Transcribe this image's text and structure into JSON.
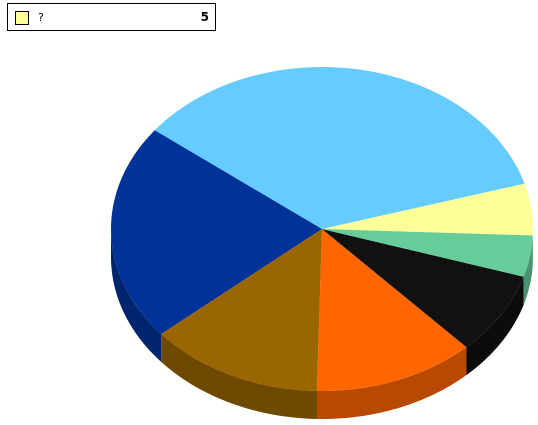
{
  "chart_data": {
    "type": "pie",
    "style": "3d",
    "slices": [
      {
        "label": "?",
        "value": 5,
        "color": "#ffff99"
      },
      {
        "label": "",
        "value": 34,
        "color": "#66ccff"
      },
      {
        "label": "",
        "value": 21,
        "color": "#003399"
      },
      {
        "label": "",
        "value": 13,
        "color": "#996600"
      },
      {
        "label": "",
        "value": 12,
        "color": "#ff6600"
      },
      {
        "label": "",
        "value": 8,
        "color": "#111111"
      },
      {
        "label": "",
        "value": 4,
        "color": "#66cc99"
      }
    ]
  },
  "tooltip": {
    "label": "?",
    "value": "5",
    "swatch_color": "#ffff99"
  }
}
